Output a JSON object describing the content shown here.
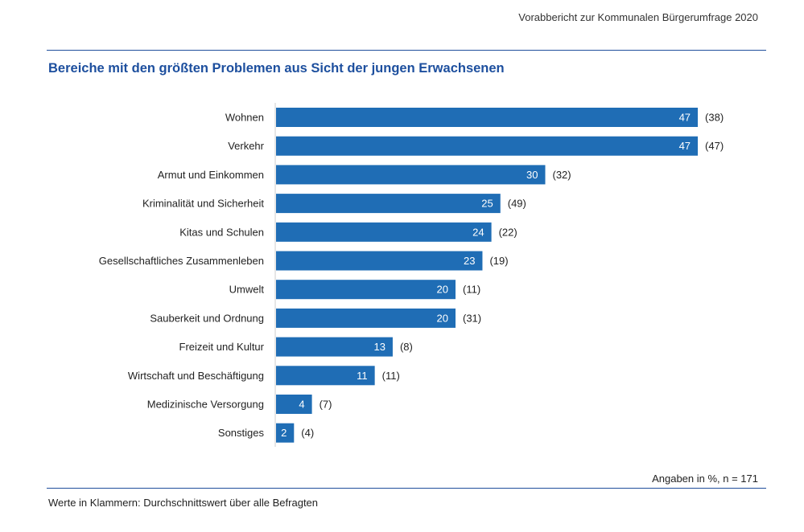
{
  "header": {
    "report_title": "Vorabbericht zur Kommunalen Bürgerumfrage 2020"
  },
  "footer": {
    "units_note": "Angaben in %, n = 171",
    "legend_note": "Werte in Klammern: Durchschnittswert über alle Befragten"
  },
  "colors": {
    "bar": "#1f6db5",
    "title": "#1d4f9e",
    "rule": "#1f4e9c"
  },
  "chart_data": {
    "type": "bar",
    "orientation": "horizontal",
    "title": "Bereiche mit den größten Problemen aus Sicht der jungen Erwachsenen",
    "categories": [
      "Wohnen",
      "Verkehr",
      "Armut und Einkommen",
      "Kriminalität und Sicherheit",
      "Kitas und Schulen",
      "Gesellschaftliches Zusammenleben",
      "Umwelt",
      "Sauberkeit und Ordnung",
      "Freizeit und Kultur",
      "Wirtschaft und Beschäftigung",
      "Medizinische Versorgung",
      "Sonstiges"
    ],
    "values": [
      47,
      47,
      30,
      25,
      24,
      23,
      20,
      20,
      13,
      11,
      4,
      2
    ],
    "reference_values": [
      "(38)",
      "(47)",
      "(32)",
      "(49)",
      "(22)",
      "(19)",
      "(11)",
      "(31)",
      "(8)",
      "(11)",
      "(7)",
      "(4)"
    ],
    "xlim": [
      0,
      50
    ],
    "grid": false
  }
}
